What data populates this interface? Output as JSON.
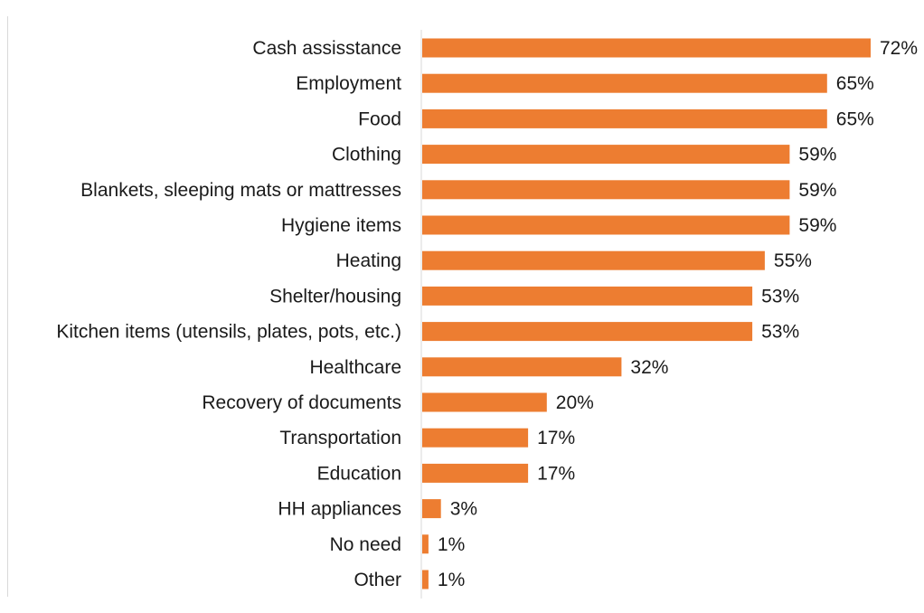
{
  "chart_data": {
    "type": "bar",
    "orientation": "horizontal",
    "categories": [
      "Cash assisstance",
      "Employment",
      "Food",
      "Clothing",
      "Blankets, sleeping mats or mattresses",
      "Hygiene items",
      "Heating",
      "Shelter/housing",
      "Kitchen items (utensils, plates, pots, etc.)",
      "Healthcare",
      "Recovery of documents",
      "Transportation",
      "Education",
      "HH appliances",
      "No need",
      "Other"
    ],
    "values": [
      72,
      65,
      65,
      59,
      59,
      59,
      55,
      53,
      53,
      32,
      20,
      17,
      17,
      3,
      1,
      1
    ],
    "value_labels": [
      "72%",
      "65%",
      "65%",
      "59%",
      "59%",
      "59%",
      "55%",
      "53%",
      "53%",
      "32%",
      "20%",
      "17%",
      "17%",
      "3%",
      "1%",
      "1%"
    ],
    "unit": "%",
    "xlim": [
      0,
      72
    ],
    "grid": false,
    "bar_color": "#ed7d31",
    "axis_color": "#d9d9d9"
  }
}
